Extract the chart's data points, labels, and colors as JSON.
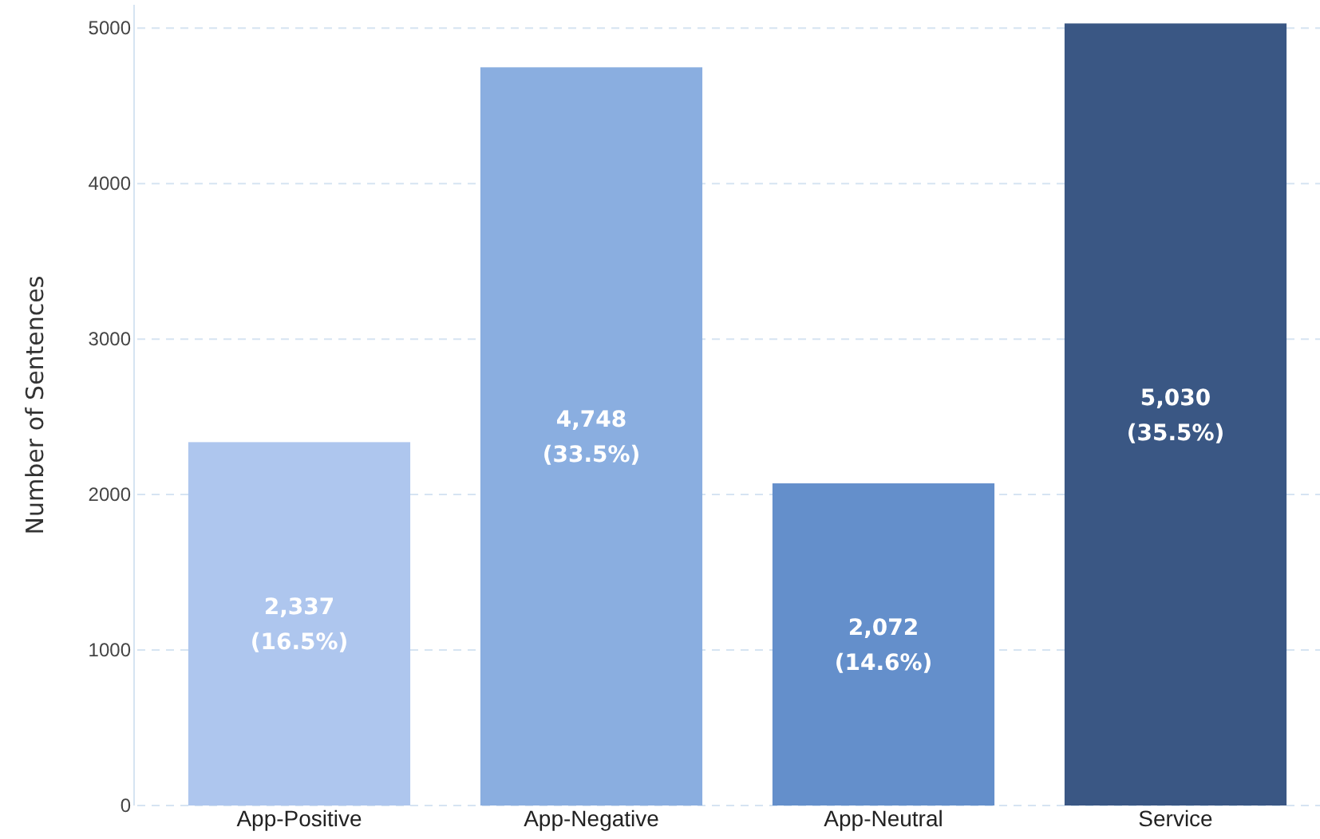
{
  "chart_data": {
    "type": "bar",
    "ylabel": "Number of Sentences",
    "categories": [
      "App-Positive",
      "App-Negative",
      "App-Neutral",
      "Service"
    ],
    "values": [
      2337,
      4748,
      2072,
      5030
    ],
    "colors": [
      "#aec6ee",
      "#8aaee0",
      "#648fcb",
      "#3a5784"
    ],
    "value_labels": [
      "2,337\n(16.5%)",
      "4,748\n(33.5%)",
      "2,072\n(14.6%)",
      "5,030\n(35.5%)"
    ],
    "ylim": [
      0,
      5150
    ],
    "yticks": [
      0,
      1000,
      2000,
      3000,
      4000,
      5000
    ],
    "grid": "y"
  }
}
